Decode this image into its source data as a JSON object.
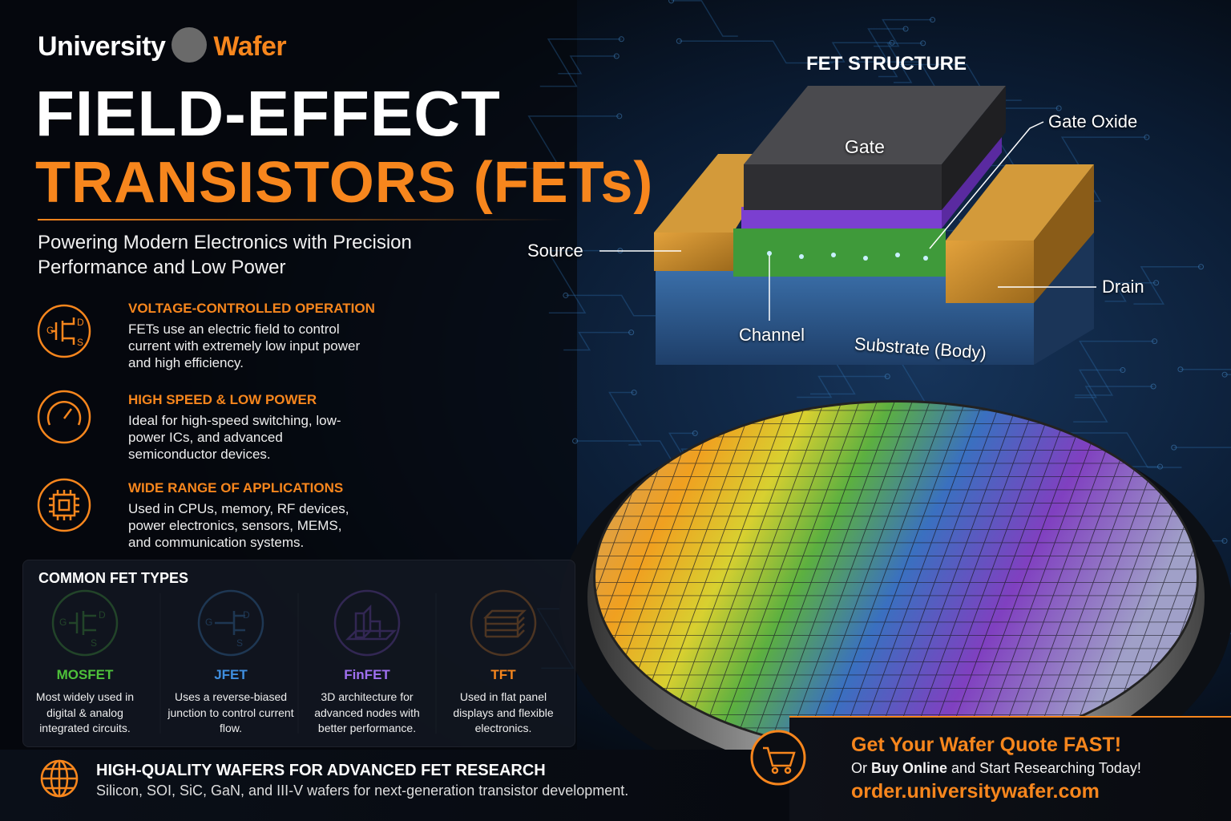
{
  "brand": {
    "name_left": "University",
    "name_right": "Wafer"
  },
  "header": {
    "title_line1": "FIELD-EFFECT",
    "title_line2": "TRANSISTORS (FETs)",
    "subtitle": "Powering Modern Electronics with Precision Performance and Low Power"
  },
  "features": [
    {
      "title": "VOLTAGE-CONTROLLED OPERATION",
      "text": "FETs use an electric field to control current with extremely low input power and high efficiency."
    },
    {
      "title": "HIGH SPEED & LOW POWER",
      "text": "Ideal for high-speed switching, low-power ICs, and advanced semiconductor devices."
    },
    {
      "title": "WIDE RANGE OF APPLICATIONS",
      "text": "Used in CPUs, memory, RF devices, power electronics, sensors, MEMS, and communication systems."
    }
  ],
  "icon_terminals": {
    "gate": "G",
    "drain": "D",
    "source": "S"
  },
  "fet_types": {
    "heading": "COMMON FET TYPES",
    "items": [
      {
        "name": "MOSFET",
        "text": "Most widely used in digital & analog integrated circuits."
      },
      {
        "name": "JFET",
        "text": "Uses a reverse-biased junction to control current flow."
      },
      {
        "name": "FinFET",
        "text": "3D architecture for advanced nodes with better performance."
      },
      {
        "name": "TFT",
        "text": "Used in flat panel displays and flexible electronics."
      }
    ]
  },
  "diagram": {
    "title": "FET STRUCTURE",
    "labels": {
      "gate": "Gate",
      "gate_oxide": "Gate Oxide",
      "source": "Source",
      "drain": "Drain",
      "channel": "Channel",
      "substrate": "Substrate (Body)"
    }
  },
  "footer": {
    "title": "HIGH-QUALITY WAFERS FOR ADVANCED FET RESEARCH",
    "text": "Silicon, SOI, SiC, GaN, and III-V wafers for next-generation transistor development."
  },
  "cta": {
    "headline": "Get Your Wafer Quote FAST!",
    "line": [
      "Or",
      "Buy Online",
      "and Start Researching Today!"
    ],
    "url": "order.universitywafer.com"
  }
}
